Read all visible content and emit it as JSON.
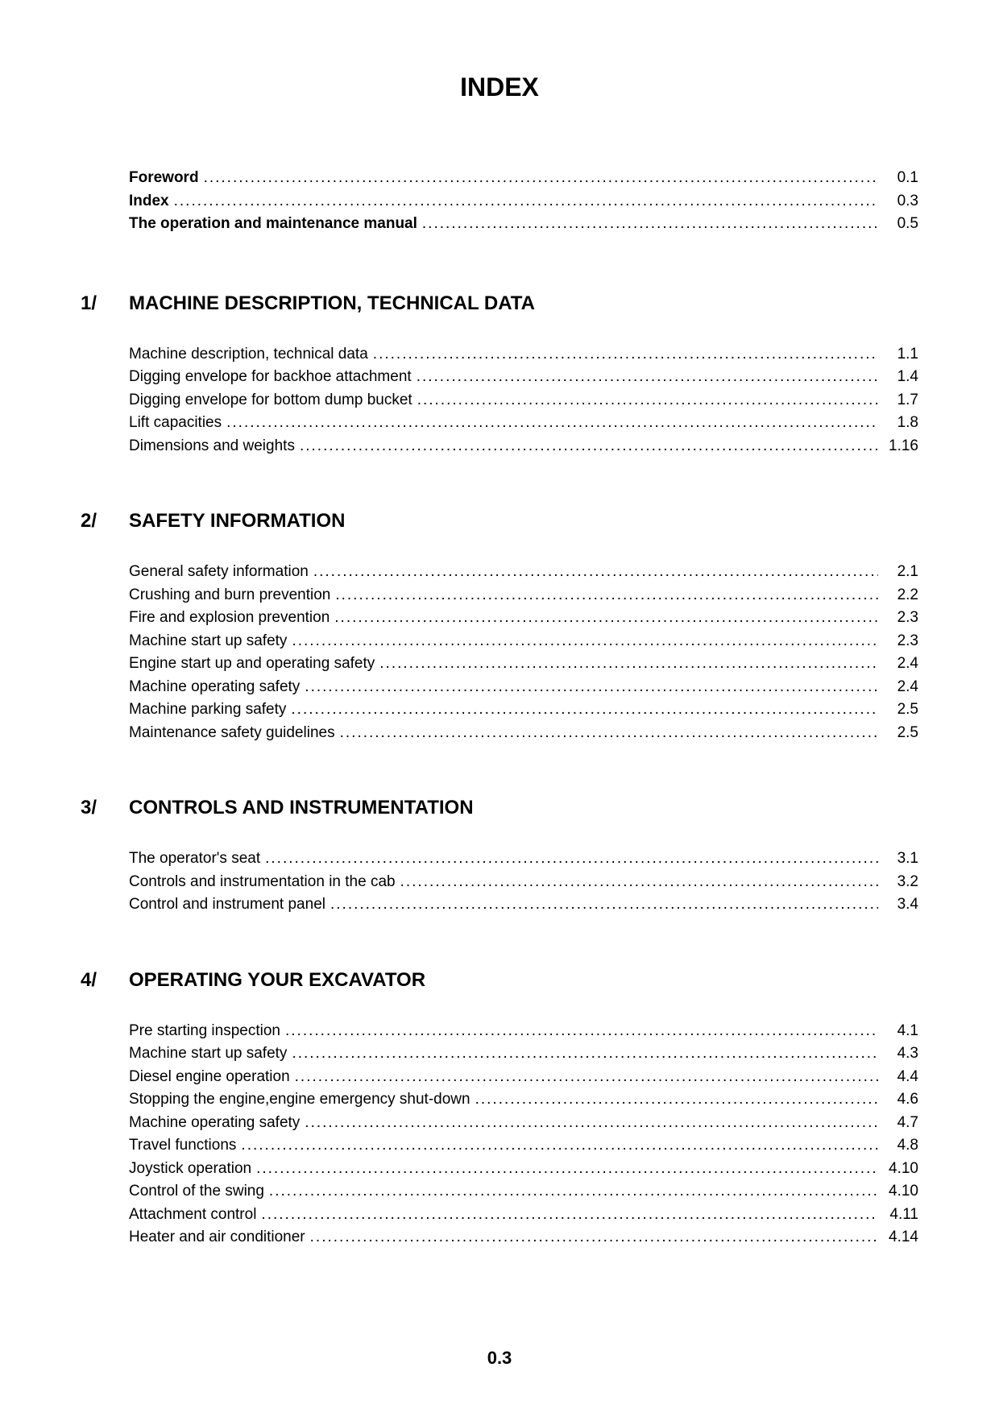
{
  "title": "INDEX",
  "page_number": "0.3",
  "preamble": [
    {
      "label": "Foreword",
      "page": "0.1",
      "bold": true
    },
    {
      "label": "Index",
      "page": "0.3",
      "bold": true
    },
    {
      "label": "The operation and maintenance manual",
      "page": "0.5",
      "bold": true
    }
  ],
  "sections": [
    {
      "number": "1/",
      "title": "MACHINE DESCRIPTION, TECHNICAL DATA",
      "entries": [
        {
          "label": "Machine description, technical data",
          "page": "1.1"
        },
        {
          "label": "Digging envelope for backhoe attachment",
          "page": "1.4"
        },
        {
          "label": "Digging envelope for bottom dump bucket",
          "page": "1.7"
        },
        {
          "label": "Lift capacities",
          "page": "1.8"
        },
        {
          "label": "Dimensions and weights",
          "page": "1.16"
        }
      ]
    },
    {
      "number": "2/",
      "title": "SAFETY INFORMATION",
      "entries": [
        {
          "label": "General safety information",
          "page": "2.1"
        },
        {
          "label": "Crushing and burn prevention",
          "page": "2.2"
        },
        {
          "label": "Fire and explosion prevention",
          "page": "2.3"
        },
        {
          "label": "Machine start up safety",
          "page": "2.3"
        },
        {
          "label": "Engine start up and operating safety",
          "page": "2.4"
        },
        {
          "label": "Machine operating safety",
          "page": "2.4"
        },
        {
          "label": "Machine parking safety",
          "page": "2.5"
        },
        {
          "label": "Maintenance safety guidelines",
          "page": "2.5"
        }
      ]
    },
    {
      "number": "3/",
      "title": "CONTROLS AND INSTRUMENTATION",
      "entries": [
        {
          "label": "The operator's seat",
          "page": "3.1"
        },
        {
          "label": "Controls and instrumentation in the cab",
          "page": "3.2"
        },
        {
          "label": "Control and instrument panel",
          "page": "3.4"
        }
      ]
    },
    {
      "number": "4/",
      "title": "OPERATING YOUR EXCAVATOR",
      "entries": [
        {
          "label": "Pre starting inspection",
          "page": "4.1"
        },
        {
          "label": "Machine start up safety",
          "page": "4.3"
        },
        {
          "label": "Diesel engine operation",
          "page": "4.4"
        },
        {
          "label": "Stopping the engine,engine emergency shut-down",
          "page": "4.6"
        },
        {
          "label": "Machine operating safety",
          "page": "4.7"
        },
        {
          "label": "Travel functions",
          "page": "4.8"
        },
        {
          "label": "Joystick operation",
          "page": "4.10"
        },
        {
          "label": "Control of the swing",
          "page": "4.10"
        },
        {
          "label": "Attachment control",
          "page": "4.11"
        },
        {
          "label": "Heater and air conditioner",
          "page": "4.14"
        }
      ]
    }
  ]
}
